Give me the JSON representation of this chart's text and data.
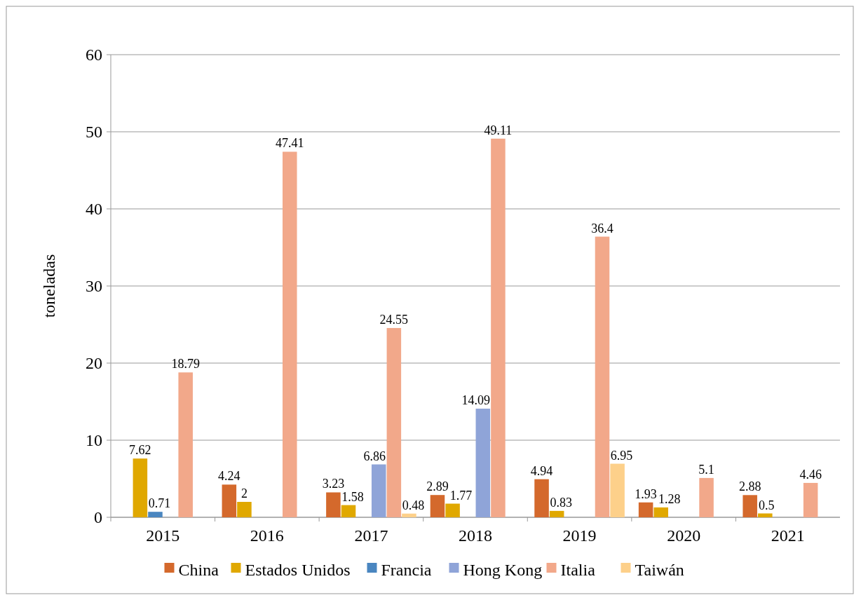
{
  "chart_data": {
    "type": "bar",
    "ylabel": "toneladas",
    "categories": [
      "2015",
      "2016",
      "2017",
      "2018",
      "2019",
      "2020",
      "2021"
    ],
    "series": [
      {
        "name": "China",
        "color": "#d4692c",
        "values": [
          null,
          4.24,
          3.23,
          2.89,
          4.94,
          1.93,
          2.88
        ]
      },
      {
        "name": "Estados Unidos",
        "color": "#e0a800",
        "values": [
          7.62,
          2,
          1.58,
          1.77,
          0.83,
          1.28,
          0.5
        ]
      },
      {
        "name": "Francia",
        "color": "#4a86c0",
        "values": [
          0.71,
          null,
          null,
          null,
          null,
          null,
          null
        ]
      },
      {
        "name": "Hong Kong",
        "color": "#8fa4d8",
        "values": [
          null,
          null,
          6.86,
          14.09,
          null,
          null,
          null
        ]
      },
      {
        "name": "Italia",
        "color": "#f2a88a",
        "values": [
          18.79,
          47.41,
          24.55,
          49.11,
          36.4,
          5.1,
          4.46
        ]
      },
      {
        "name": "Taiwán",
        "color": "#fdd08a",
        "values": [
          null,
          null,
          0.48,
          null,
          6.95,
          null,
          null
        ]
      }
    ],
    "ylim": [
      0,
      60
    ],
    "yticks": [
      0,
      10,
      20,
      30,
      40,
      50,
      60
    ],
    "grid": "y",
    "legend": "bottom",
    "data_labels": true
  }
}
